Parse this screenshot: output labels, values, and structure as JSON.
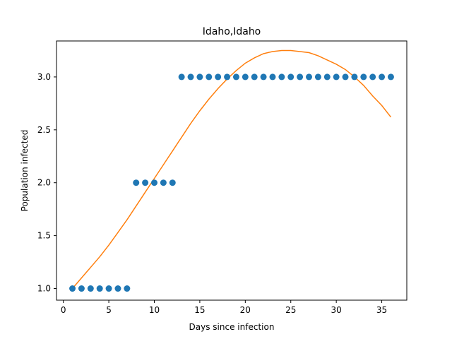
{
  "chart_data": {
    "type": "scatter",
    "title": "Idaho,Idaho",
    "xlabel": "Days since infection",
    "ylabel": "Population infected",
    "xlim": [
      -0.75,
      37.75
    ],
    "ylim": [
      0.89,
      3.34
    ],
    "xticks": [
      0,
      5,
      10,
      15,
      20,
      25,
      30,
      35
    ],
    "yticks": [
      1.0,
      1.5,
      2.0,
      2.5,
      3.0
    ],
    "ytick_labels": [
      "1.0",
      "1.5",
      "2.0",
      "2.5",
      "3.0"
    ],
    "grid": false,
    "series": [
      {
        "kind": "scatter",
        "color": "#1f77b4",
        "x": [
          1,
          2,
          3,
          4,
          5,
          6,
          7,
          8,
          9,
          10,
          11,
          12,
          13,
          14,
          15,
          16,
          17,
          18,
          19,
          20,
          21,
          22,
          23,
          24,
          25,
          26,
          27,
          28,
          29,
          30,
          31,
          32,
          33,
          34,
          35,
          36
        ],
        "y": [
          1,
          1,
          1,
          1,
          1,
          1,
          1,
          2,
          2,
          2,
          2,
          2,
          3,
          3,
          3,
          3,
          3,
          3,
          3,
          3,
          3,
          3,
          3,
          3,
          3,
          3,
          3,
          3,
          3,
          3,
          3,
          3,
          3,
          3,
          3,
          3
        ]
      },
      {
        "kind": "line",
        "color": "#ff7f0e",
        "x": [
          1,
          2,
          3,
          4,
          5,
          6,
          7,
          8,
          9,
          10,
          11,
          12,
          13,
          14,
          15,
          16,
          17,
          18,
          19,
          20,
          21,
          22,
          23,
          24,
          25,
          26,
          27,
          28,
          29,
          30,
          31,
          32,
          33,
          34,
          35,
          36
        ],
        "y": [
          1.0,
          1.1,
          1.2,
          1.3,
          1.41,
          1.53,
          1.65,
          1.78,
          1.91,
          2.04,
          2.17,
          2.3,
          2.43,
          2.56,
          2.68,
          2.79,
          2.89,
          2.98,
          3.06,
          3.13,
          3.18,
          3.22,
          3.24,
          3.25,
          3.25,
          3.24,
          3.23,
          3.2,
          3.16,
          3.12,
          3.07,
          3.0,
          2.92,
          2.82,
          2.73,
          2.62
        ]
      }
    ]
  }
}
